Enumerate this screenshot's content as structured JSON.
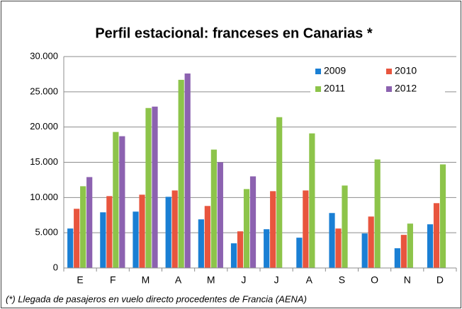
{
  "chart_data": {
    "type": "bar",
    "title": "Perfil estacional: franceses en Canarias *",
    "categories": [
      "E",
      "F",
      "M",
      "A",
      "M",
      "J",
      "J",
      "A",
      "S",
      "O",
      "N",
      "D"
    ],
    "series": [
      {
        "name": "2009",
        "color": "#1a7fd4",
        "values": [
          5600,
          7900,
          8000,
          10100,
          6900,
          3500,
          5500,
          4300,
          7800,
          4900,
          2800,
          6200
        ]
      },
      {
        "name": "2010",
        "color": "#e8553e",
        "values": [
          8400,
          10200,
          10400,
          11000,
          8800,
          5200,
          10900,
          11000,
          5600,
          7300,
          4700,
          9200
        ]
      },
      {
        "name": "2011",
        "color": "#8dc44a",
        "values": [
          11600,
          19300,
          22700,
          26700,
          16800,
          11200,
          21400,
          19100,
          11700,
          15400,
          6300,
          14700
        ]
      },
      {
        "name": "2012",
        "color": "#8c62b0",
        "values": [
          12900,
          18700,
          22900,
          27600,
          15000,
          13000,
          null,
          null,
          null,
          null,
          null,
          null
        ]
      }
    ],
    "ylim": [
      0,
      30000
    ],
    "yticks": [
      0,
      {
        "value": 5000,
        "label": "5.000"
      },
      {
        "value": 10000,
        "label": "10.000"
      },
      {
        "value": 15000,
        "label": "15.000"
      },
      {
        "value": 20000,
        "label": "20.000"
      },
      {
        "value": 25000,
        "label": "25.000"
      },
      {
        "value": 30000,
        "label": "30.000"
      }
    ],
    "grid": true,
    "legend": "upper right",
    "footnote": "(*) Llegada de pasajeros en vuelo directo procedentes de Francia (AENA)"
  }
}
